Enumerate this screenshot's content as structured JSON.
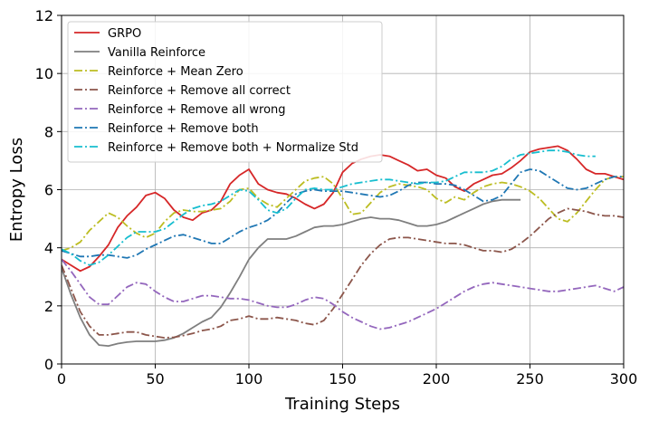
{
  "chart_data": {
    "type": "line",
    "xlabel": "Training Steps",
    "ylabel": "Entropy Loss",
    "xlim": [
      0,
      300
    ],
    "ylim": [
      0,
      12
    ],
    "xticks": [
      0,
      50,
      100,
      150,
      200,
      250,
      300
    ],
    "yticks": [
      0,
      2,
      4,
      6,
      8,
      10,
      12
    ],
    "grid": true,
    "legend_position": "top-left",
    "series": [
      {
        "name": "GRPO",
        "color": "#d62728",
        "dash": "solid",
        "x": [
          0,
          5,
          10,
          15,
          20,
          25,
          30,
          35,
          40,
          45,
          50,
          55,
          60,
          65,
          70,
          75,
          80,
          85,
          90,
          95,
          100,
          105,
          110,
          115,
          120,
          125,
          130,
          135,
          140,
          145,
          150,
          155,
          160,
          165,
          170,
          175,
          180,
          185,
          190,
          195,
          200,
          205,
          210,
          215,
          220,
          225,
          230,
          235,
          240,
          245,
          250,
          255,
          260,
          265,
          270,
          275,
          280,
          285,
          290,
          295,
          300
        ],
        "y": [
          3.6,
          3.4,
          3.2,
          3.35,
          3.7,
          4.1,
          4.7,
          5.1,
          5.4,
          5.8,
          5.9,
          5.7,
          5.3,
          5.05,
          4.95,
          5.2,
          5.3,
          5.6,
          6.2,
          6.5,
          6.7,
          6.2,
          6.0,
          5.9,
          5.85,
          5.7,
          5.5,
          5.35,
          5.5,
          5.9,
          6.6,
          6.9,
          7.05,
          7.15,
          7.2,
          7.15,
          7.0,
          6.85,
          6.65,
          6.7,
          6.5,
          6.4,
          6.1,
          5.95,
          6.2,
          6.35,
          6.5,
          6.55,
          6.75,
          7.0,
          7.3,
          7.4,
          7.45,
          7.5,
          7.35,
          7.05,
          6.7,
          6.55,
          6.55,
          6.45,
          6.35
        ]
      },
      {
        "name": "Vanilla Reinforce",
        "color": "#7f7f7f",
        "dash": "solid",
        "x": [
          0,
          5,
          10,
          15,
          20,
          25,
          30,
          35,
          40,
          45,
          50,
          55,
          60,
          65,
          70,
          75,
          80,
          85,
          90,
          95,
          100,
          105,
          110,
          115,
          120,
          125,
          130,
          135,
          140,
          145,
          150,
          155,
          160,
          165,
          170,
          175,
          180,
          185,
          190,
          195,
          200,
          205,
          210,
          215,
          220,
          225,
          230,
          235,
          240,
          245
        ],
        "y": [
          3.3,
          2.4,
          1.6,
          1.0,
          0.65,
          0.62,
          0.7,
          0.75,
          0.78,
          0.78,
          0.78,
          0.82,
          0.9,
          1.05,
          1.25,
          1.45,
          1.6,
          1.95,
          2.45,
          3.0,
          3.6,
          4.0,
          4.3,
          4.3,
          4.3,
          4.4,
          4.55,
          4.7,
          4.75,
          4.75,
          4.8,
          4.9,
          5.0,
          5.05,
          5.0,
          5.0,
          4.95,
          4.85,
          4.75,
          4.75,
          4.8,
          4.9,
          5.05,
          5.2,
          5.35,
          5.5,
          5.6,
          5.65,
          5.65,
          5.65
        ]
      },
      {
        "name": "Reinforce + Mean Zero",
        "color": "#bcbd22",
        "dash": "dashdot",
        "x": [
          0,
          5,
          10,
          15,
          20,
          25,
          30,
          35,
          40,
          45,
          50,
          55,
          60,
          65,
          70,
          75,
          80,
          85,
          90,
          95,
          100,
          105,
          110,
          115,
          120,
          125,
          130,
          135,
          140,
          145,
          150,
          155,
          160,
          165,
          170,
          175,
          180,
          185,
          190,
          195,
          200,
          205,
          210,
          215,
          220,
          225,
          230,
          235,
          240,
          245,
          250,
          255,
          260,
          265,
          270,
          275,
          280,
          285,
          290,
          295,
          300
        ],
        "y": [
          3.9,
          4.0,
          4.2,
          4.6,
          4.9,
          5.2,
          5.05,
          4.75,
          4.5,
          4.35,
          4.5,
          4.9,
          5.2,
          5.3,
          5.25,
          5.25,
          5.3,
          5.35,
          5.6,
          6.0,
          6.05,
          5.7,
          5.5,
          5.4,
          5.7,
          6.0,
          6.3,
          6.4,
          6.45,
          6.2,
          5.7,
          5.15,
          5.2,
          5.55,
          5.9,
          6.1,
          6.2,
          6.15,
          6.1,
          6.0,
          5.7,
          5.55,
          5.75,
          5.65,
          5.9,
          6.1,
          6.2,
          6.25,
          6.2,
          6.1,
          5.95,
          5.7,
          5.35,
          5.0,
          4.9,
          5.2,
          5.6,
          6.0,
          6.35,
          6.45,
          6.45
        ]
      },
      {
        "name": "Reinforce + Remove all correct",
        "color": "#8c564b",
        "dash": "dashdot",
        "x": [
          0,
          5,
          10,
          15,
          20,
          25,
          30,
          35,
          40,
          45,
          50,
          55,
          60,
          65,
          70,
          75,
          80,
          85,
          90,
          95,
          100,
          105,
          110,
          115,
          120,
          125,
          130,
          135,
          140,
          145,
          150,
          155,
          160,
          165,
          170,
          175,
          180,
          185,
          190,
          195,
          200,
          205,
          210,
          215,
          220,
          225,
          230,
          235,
          240,
          245,
          250,
          255,
          260,
          265,
          270,
          275,
          280,
          285,
          290,
          295,
          300
        ],
        "y": [
          3.4,
          2.6,
          1.8,
          1.3,
          1.0,
          1.0,
          1.05,
          1.1,
          1.1,
          1.0,
          0.95,
          0.9,
          0.92,
          0.98,
          1.05,
          1.15,
          1.2,
          1.3,
          1.5,
          1.55,
          1.65,
          1.55,
          1.55,
          1.6,
          1.55,
          1.5,
          1.4,
          1.35,
          1.5,
          1.9,
          2.4,
          2.9,
          3.4,
          3.8,
          4.1,
          4.3,
          4.35,
          4.35,
          4.3,
          4.25,
          4.2,
          4.15,
          4.15,
          4.1,
          4.0,
          3.9,
          3.9,
          3.85,
          3.95,
          4.15,
          4.4,
          4.7,
          5.0,
          5.2,
          5.35,
          5.3,
          5.25,
          5.15,
          5.1,
          5.1,
          5.05
        ]
      },
      {
        "name": "Reinforce + Remove all wrong",
        "color": "#9467bd",
        "dash": "dashdot",
        "x": [
          0,
          5,
          10,
          15,
          20,
          25,
          30,
          35,
          40,
          45,
          50,
          55,
          60,
          65,
          70,
          75,
          80,
          85,
          90,
          95,
          100,
          105,
          110,
          115,
          120,
          125,
          130,
          135,
          140,
          145,
          150,
          155,
          160,
          165,
          170,
          175,
          180,
          185,
          190,
          195,
          200,
          205,
          210,
          215,
          220,
          225,
          230,
          235,
          240,
          245,
          250,
          255,
          260,
          265,
          270,
          275,
          280,
          285,
          290,
          295,
          300
        ],
        "y": [
          3.6,
          3.2,
          2.75,
          2.3,
          2.05,
          2.05,
          2.35,
          2.65,
          2.8,
          2.75,
          2.5,
          2.3,
          2.15,
          2.15,
          2.25,
          2.35,
          2.35,
          2.3,
          2.25,
          2.25,
          2.2,
          2.1,
          2.0,
          1.95,
          1.95,
          2.05,
          2.2,
          2.3,
          2.25,
          2.05,
          1.8,
          1.6,
          1.45,
          1.3,
          1.2,
          1.25,
          1.35,
          1.45,
          1.6,
          1.75,
          1.9,
          2.1,
          2.3,
          2.5,
          2.65,
          2.75,
          2.8,
          2.75,
          2.7,
          2.65,
          2.6,
          2.55,
          2.5,
          2.5,
          2.55,
          2.6,
          2.65,
          2.7,
          2.6,
          2.5,
          2.65
        ]
      },
      {
        "name": "Reinforce + Remove both",
        "color": "#1f77b4",
        "dash": "dashdot",
        "x": [
          0,
          5,
          10,
          15,
          20,
          25,
          30,
          35,
          40,
          45,
          50,
          55,
          60,
          65,
          70,
          75,
          80,
          85,
          90,
          95,
          100,
          105,
          110,
          115,
          120,
          125,
          130,
          135,
          140,
          145,
          150,
          155,
          160,
          165,
          170,
          175,
          180,
          185,
          190,
          195,
          200,
          205,
          210,
          215,
          220,
          225,
          230,
          235,
          240,
          245,
          250,
          255,
          260,
          265,
          270,
          275,
          280,
          285,
          290,
          295,
          300
        ],
        "y": [
          3.9,
          3.8,
          3.7,
          3.7,
          3.75,
          3.75,
          3.7,
          3.65,
          3.75,
          3.95,
          4.1,
          4.25,
          4.4,
          4.45,
          4.35,
          4.25,
          4.15,
          4.15,
          4.35,
          4.55,
          4.7,
          4.8,
          4.95,
          5.2,
          5.55,
          5.85,
          5.95,
          6.0,
          5.95,
          5.95,
          5.95,
          5.9,
          5.85,
          5.8,
          5.75,
          5.8,
          5.95,
          6.15,
          6.25,
          6.25,
          6.2,
          6.2,
          6.15,
          6.0,
          5.8,
          5.6,
          5.65,
          5.8,
          6.2,
          6.6,
          6.7,
          6.65,
          6.45,
          6.25,
          6.05,
          6.0,
          6.05,
          6.2,
          6.35,
          6.45,
          6.45
        ]
      },
      {
        "name": "Reinforce + Remove both + Normalize Std",
        "color": "#17becf",
        "dash": "dashdot",
        "x": [
          0,
          5,
          10,
          15,
          20,
          25,
          30,
          35,
          40,
          45,
          50,
          55,
          60,
          65,
          70,
          75,
          80,
          85,
          90,
          95,
          100,
          105,
          110,
          115,
          120,
          125,
          130,
          135,
          140,
          145,
          150,
          155,
          160,
          165,
          170,
          175,
          180,
          185,
          190,
          195,
          200,
          205,
          210,
          215,
          220,
          225,
          230,
          235,
          240,
          245,
          250,
          255,
          260,
          265,
          270,
          275,
          280,
          285
        ],
        "y": [
          3.95,
          3.8,
          3.55,
          3.4,
          3.5,
          3.75,
          4.05,
          4.35,
          4.55,
          4.55,
          4.55,
          4.65,
          4.9,
          5.15,
          5.35,
          5.45,
          5.5,
          5.6,
          5.8,
          6.0,
          5.95,
          5.65,
          5.3,
          5.2,
          5.35,
          5.7,
          6.0,
          6.05,
          6.0,
          6.0,
          6.1,
          6.2,
          6.25,
          6.3,
          6.35,
          6.35,
          6.3,
          6.25,
          6.2,
          6.25,
          6.25,
          6.3,
          6.45,
          6.6,
          6.6,
          6.6,
          6.65,
          6.8,
          7.05,
          7.2,
          7.25,
          7.3,
          7.35,
          7.35,
          7.3,
          7.2,
          7.15,
          7.15
        ]
      }
    ]
  }
}
